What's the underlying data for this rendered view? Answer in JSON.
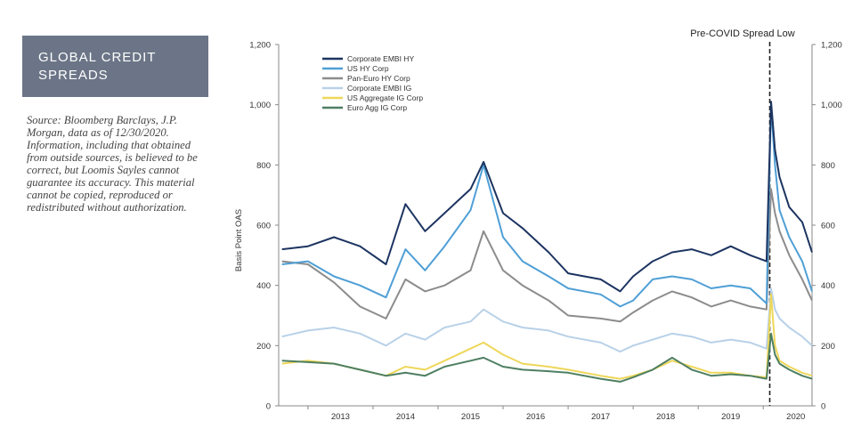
{
  "title": "GLOBAL CREDIT\nSPREADS",
  "source_note": "Source: Bloomberg Barclays, J.P. Morgan, data as of 12/30/2020. Information, including that obtained from outside sources, is believed to be correct, but Loomis Sayles cannot guarantee its accuracy. This material cannot be copied, reproduced or redistributed without authorization.",
  "chart_data": {
    "type": "line",
    "ylabel": "Basis Point OAS",
    "ylim": [
      0,
      1200
    ],
    "yticks": [
      0,
      200,
      400,
      600,
      800,
      1000,
      1200
    ],
    "ytick_labels": [
      "0",
      "200",
      "400",
      "600",
      "800",
      "1,000",
      "1,200"
    ],
    "xlim": [
      2012.55,
      2020.75
    ],
    "xticks": [
      "2013",
      "2014",
      "2015",
      "2016",
      "2017",
      "2018",
      "2019",
      "2020"
    ],
    "legend_position": "top-left",
    "annotation": {
      "text": "Pre-COVID Spread Low",
      "x": 2020.1
    },
    "x": [
      2012.6,
      2013.0,
      2013.4,
      2013.8,
      2014.2,
      2014.5,
      2014.8,
      2015.1,
      2015.5,
      2015.7,
      2016.0,
      2016.3,
      2016.7,
      2017.0,
      2017.5,
      2017.8,
      2018.0,
      2018.3,
      2018.6,
      2018.9,
      2019.2,
      2019.5,
      2019.8,
      2020.05,
      2020.12,
      2020.18,
      2020.25,
      2020.4,
      2020.6,
      2020.75
    ],
    "series": [
      {
        "name": "Corporate EMBI HY",
        "color": "#1d3461",
        "values": [
          520,
          530,
          560,
          530,
          470,
          670,
          580,
          640,
          720,
          810,
          640,
          590,
          510,
          440,
          420,
          380,
          430,
          480,
          510,
          520,
          500,
          530,
          500,
          480,
          1010,
          850,
          760,
          660,
          610,
          510
        ]
      },
      {
        "name": "US HY Corp",
        "color": "#4f9fd6",
        "values": [
          470,
          480,
          430,
          400,
          360,
          520,
          450,
          530,
          650,
          800,
          560,
          480,
          430,
          390,
          370,
          330,
          350,
          420,
          430,
          420,
          390,
          400,
          390,
          340,
          1000,
          800,
          650,
          560,
          480,
          380
        ]
      },
      {
        "name": "Pan-Euro HY Corp",
        "color": "#8c8c8c",
        "values": [
          480,
          470,
          410,
          330,
          290,
          420,
          380,
          400,
          450,
          580,
          450,
          400,
          350,
          300,
          290,
          280,
          310,
          350,
          380,
          360,
          330,
          350,
          330,
          320,
          720,
          640,
          580,
          500,
          420,
          350
        ]
      },
      {
        "name": "Corporate EMBI IG",
        "color": "#b8d1e8",
        "values": [
          230,
          250,
          260,
          240,
          200,
          240,
          220,
          260,
          280,
          320,
          280,
          260,
          250,
          230,
          210,
          180,
          200,
          220,
          240,
          230,
          210,
          220,
          210,
          190,
          390,
          320,
          290,
          260,
          230,
          200
        ]
      },
      {
        "name": "US Aggregate IG Corp",
        "color": "#eed75a",
        "values": [
          140,
          150,
          140,
          120,
          100,
          130,
          120,
          150,
          190,
          210,
          170,
          140,
          130,
          120,
          100,
          90,
          100,
          120,
          150,
          130,
          110,
          110,
          100,
          95,
          370,
          200,
          150,
          130,
          110,
          100
        ]
      },
      {
        "name": "Euro Agg IG Corp",
        "color": "#4e7f62",
        "values": [
          150,
          145,
          140,
          120,
          100,
          110,
          100,
          130,
          150,
          160,
          130,
          120,
          115,
          110,
          90,
          80,
          95,
          120,
          160,
          120,
          100,
          105,
          100,
          90,
          240,
          170,
          140,
          120,
          100,
          90
        ]
      }
    ]
  }
}
